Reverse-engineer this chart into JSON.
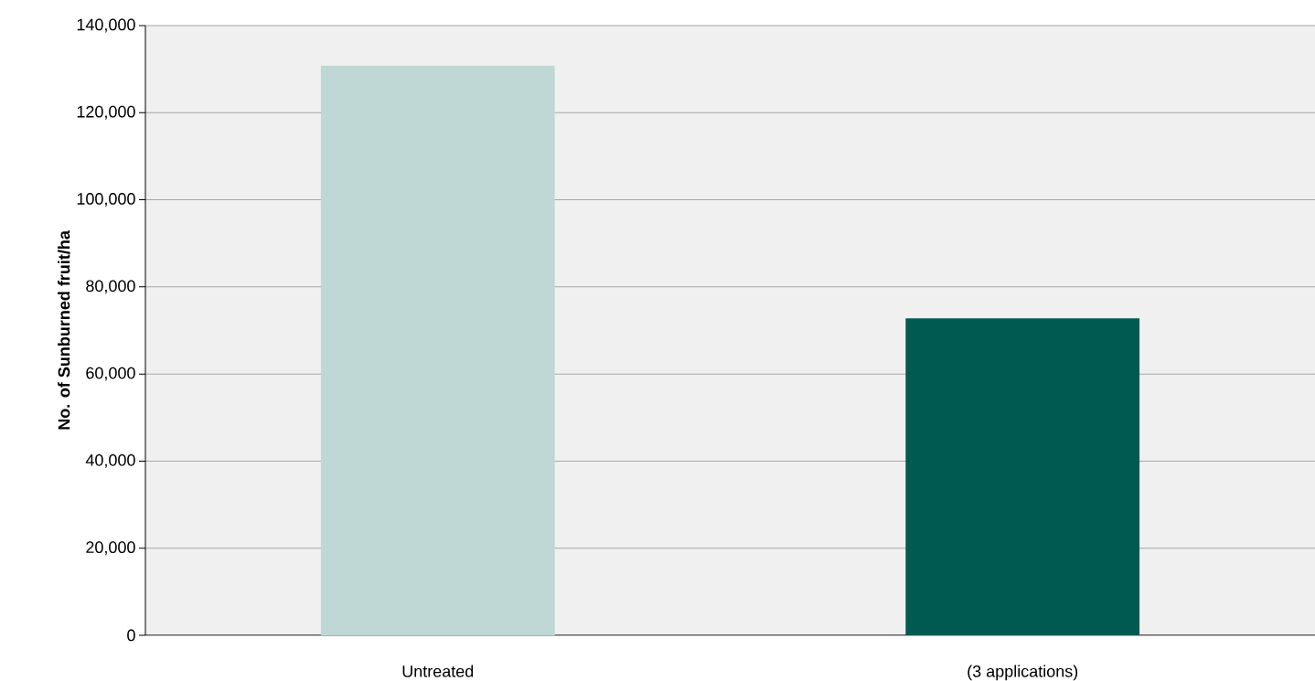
{
  "chart_data": {
    "type": "bar",
    "ylabel": "No. of Sunburned fruit/ha",
    "categories": [
      "Untreated",
      "(3 applications)"
    ],
    "values": [
      130800,
      72800
    ],
    "colors": [
      "#c0d8d5",
      "#005a52"
    ],
    "ylim": [
      0,
      140000
    ],
    "yticks": [
      {
        "value": 0,
        "label": "0"
      },
      {
        "value": 20000,
        "label": "20,000"
      },
      {
        "value": 40000,
        "label": "40,000"
      },
      {
        "value": 60000,
        "label": "60,000"
      },
      {
        "value": 80000,
        "label": "80,000"
      },
      {
        "value": 100000,
        "label": "100,000"
      },
      {
        "value": 120000,
        "label": "120,000"
      },
      {
        "value": 140000,
        "label": "140,000"
      }
    ],
    "grid": "y"
  }
}
